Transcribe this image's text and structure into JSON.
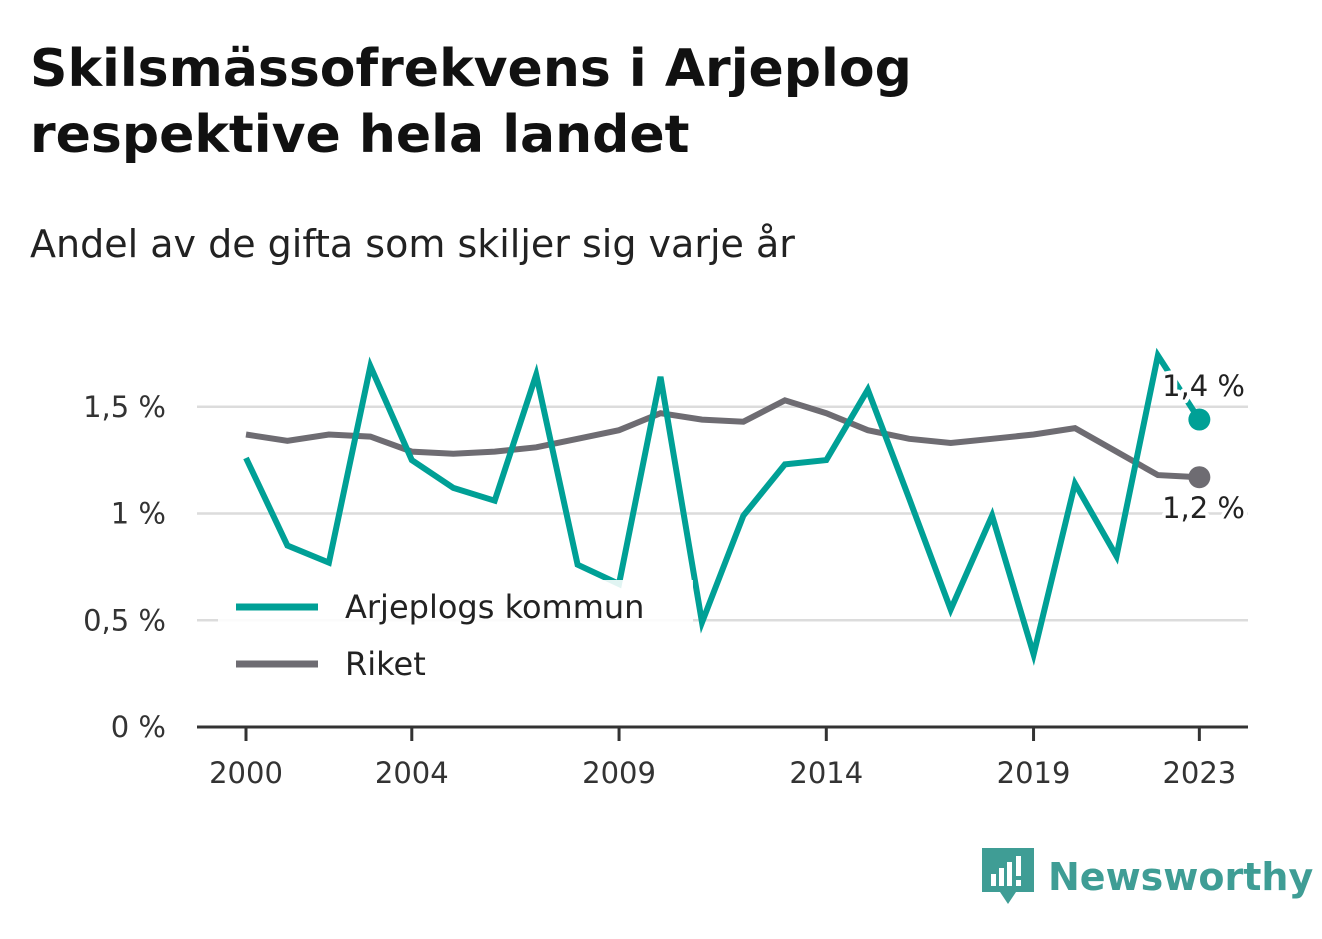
{
  "header": {
    "title": "Skilsmässofrekvens i Arjeplog respektive hela landet",
    "subtitle": "Andel av de gifta som skiljer sig varje år"
  },
  "brand": {
    "name": "Newsworthy",
    "icon": "newsworthy-logo-icon"
  },
  "colors": {
    "arjeplog": "#00a096",
    "riket": "#6e6c72",
    "grid": "#dcdcdc",
    "axis": "#333333"
  },
  "chart_data": {
    "type": "line",
    "title": "Skilsmässofrekvens i Arjeplog respektive hela landet",
    "subtitle": "Andel av de gifta som skiljer sig varje år",
    "xlabel": "",
    "ylabel": "",
    "x": [
      2000,
      2001,
      2002,
      2003,
      2004,
      2005,
      2006,
      2007,
      2008,
      2009,
      2010,
      2011,
      2012,
      2013,
      2014,
      2015,
      2016,
      2017,
      2018,
      2019,
      2020,
      2021,
      2022,
      2023
    ],
    "x_ticks": [
      "2000",
      "2004",
      "2009",
      "2014",
      "2019",
      "2023"
    ],
    "y_ticks": [
      "0 %",
      "0,5 %",
      "1 %",
      "1,5 %"
    ],
    "ylim": [
      0,
      1.8
    ],
    "grid": true,
    "legend_position": "bottom-left",
    "series": [
      {
        "name": "Arjeplogs kommun",
        "color": "#00a096",
        "values": [
          1.26,
          0.85,
          0.77,
          1.69,
          1.25,
          1.12,
          1.06,
          1.65,
          0.76,
          0.67,
          1.64,
          0.49,
          0.99,
          1.23,
          1.25,
          1.58,
          1.07,
          0.55,
          0.99,
          0.34,
          1.14,
          0.8,
          1.74,
          1.44
        ],
        "end_label": "1,4 %"
      },
      {
        "name": "Riket",
        "color": "#6e6c72",
        "values": [
          1.37,
          1.34,
          1.37,
          1.36,
          1.29,
          1.28,
          1.29,
          1.31,
          1.35,
          1.39,
          1.47,
          1.44,
          1.43,
          1.53,
          1.47,
          1.39,
          1.35,
          1.33,
          1.35,
          1.37,
          1.4,
          1.29,
          1.18,
          1.17
        ],
        "end_label": "1,2 %"
      }
    ]
  }
}
